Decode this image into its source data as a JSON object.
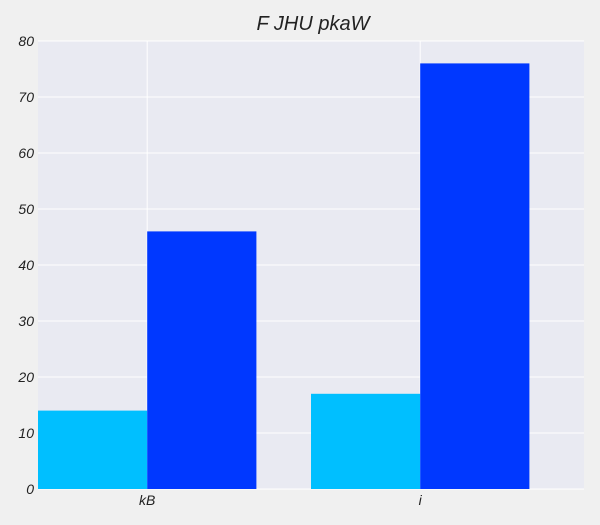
{
  "chart_data": {
    "type": "bar",
    "title": "F JHU pkaW",
    "xlabel": "",
    "ylabel": "",
    "categories": [
      "kB",
      "i"
    ],
    "series": [
      {
        "values": [
          14,
          17
        ],
        "color": "#00bfff"
      },
      {
        "values": [
          46,
          76
        ],
        "color": "#0038ff"
      }
    ],
    "ylim": [
      0,
      80
    ],
    "yticks": [
      0,
      10,
      20,
      30,
      40,
      50,
      60,
      70,
      80
    ],
    "grid": true,
    "legend": "none"
  },
  "colors": {
    "plot_background": "#e9eaf2",
    "grid": "#ffffff"
  }
}
